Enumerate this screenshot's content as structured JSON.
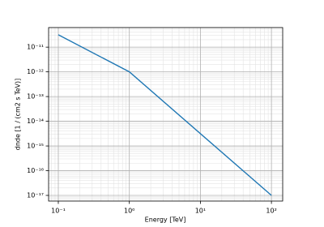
{
  "chart_data": {
    "type": "line",
    "xlabel": "Energy [TeV]",
    "ylabel": "dnde [1 / (cm2 s TeV)]",
    "x": [
      0.1,
      1,
      100
    ],
    "series": [
      {
        "name": "dnde",
        "color": "#1f77b4",
        "values": [
          3.16e-11,
          1e-12,
          1e-17
        ]
      }
    ],
    "xscale": "log",
    "yscale": "log",
    "xlim": [
      0.073,
      144
    ],
    "ylim": [
      5.9e-18,
      6.2e-11
    ],
    "xticks": [
      {
        "value": 0.1,
        "label": "10⁻¹"
      },
      {
        "value": 1,
        "label": "10⁰"
      },
      {
        "value": 10,
        "label": "10¹"
      },
      {
        "value": 100,
        "label": "10²"
      }
    ],
    "yticks": [
      {
        "value": 1e-17,
        "label": "10⁻¹⁷"
      },
      {
        "value": 1e-16,
        "label": "10⁻¹⁶"
      },
      {
        "value": 1e-15,
        "label": "10⁻¹⁵"
      },
      {
        "value": 1e-14,
        "label": "10⁻¹⁴"
      },
      {
        "value": 1e-13,
        "label": "10⁻¹³"
      },
      {
        "value": 1e-12,
        "label": "10⁻¹²"
      },
      {
        "value": 1e-11,
        "label": "10⁻¹¹"
      }
    ],
    "grid": true,
    "minor_grid": true
  }
}
